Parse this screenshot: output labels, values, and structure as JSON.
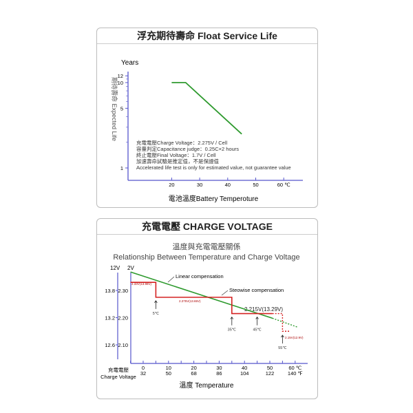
{
  "chart_data": [
    {
      "type": "line",
      "panel_title": "浮充期待壽命 Float Service Life",
      "ylabel_top": "Years",
      "ylabel": "期待壽命 Expected Life",
      "xlabel": "電池溫度Battery Temperoture",
      "yscale": "log",
      "ylim": [
        0.9,
        13
      ],
      "xlim": [
        0,
        65
      ],
      "yticks": [
        "12",
        "10",
        "5",
        "1"
      ],
      "ytick_values": [
        12,
        10,
        5,
        1
      ],
      "xticks": [
        "20",
        "30",
        "40",
        "50",
        "60 ℃"
      ],
      "xtick_values": [
        20,
        30,
        40,
        50,
        60
      ],
      "series": [
        {
          "name": "Expected Life",
          "color": "#2e9a2e",
          "x": [
            20,
            25,
            45
          ],
          "y": [
            10,
            10,
            2.5
          ]
        }
      ],
      "notes": [
        "充電電壓Charge Voltage：2.275V / Cell",
        "容量判定Capacitance judge：0.25C×2 hours",
        "終止電壓Final Voltage：1.7V / Cell",
        "加速壽命試驗是推定值，不是保證值",
        "Accelerated life test is only for estimated value, not guarantee value"
      ]
    },
    {
      "type": "line",
      "panel_title": "充電電壓 CHARGE VOLTAGE",
      "title": "溫度與充電電壓關係",
      "subtitle": "Relationship Between Temperature and Charge Voltage",
      "xlabel": "溫度   Temperature",
      "ylabel": [
        "充電電壓",
        "Charge Voltage"
      ],
      "y_units": [
        "12V",
        "2V"
      ],
      "ylim": [
        2.05,
        2.4
      ],
      "xlim": [
        -5,
        62
      ],
      "yticks_2v": [
        "2.30",
        "2.20",
        "2.10"
      ],
      "yticks_12v": [
        "13.8",
        "13.2",
        "12.6"
      ],
      "ytick_values": [
        2.3,
        2.2,
        2.1
      ],
      "xticks_c": [
        "0",
        "10",
        "20",
        "30",
        "40",
        "50",
        "60 ℃"
      ],
      "xticks_f": [
        "32",
        "50",
        "68",
        "86",
        "104",
        "122",
        "140 ℉"
      ],
      "xtick_values": [
        0,
        10,
        20,
        30,
        40,
        50,
        60
      ],
      "series": [
        {
          "name": "Linear compensation",
          "color": "#2e9a2e",
          "x": [
            -5,
            51
          ],
          "y": [
            2.368,
            2.198
          ],
          "dotted_x": [
            51,
            61
          ],
          "dotted_y": [
            2.198,
            2.165
          ]
        },
        {
          "name": "Steowise compensation",
          "color": "#d42020",
          "x": [
            -5,
            5,
            5,
            35,
            35,
            51
          ],
          "y": [
            2.33,
            2.33,
            2.275,
            2.275,
            2.215,
            2.215
          ],
          "dotted_x": [
            51,
            55,
            55,
            58
          ],
          "dotted_y": [
            2.215,
            2.215,
            2.15,
            2.15
          ]
        }
      ],
      "annotations": [
        "2.33V(13.98V)",
        "2.275V(13.65V)",
        "2.215V(13.29V)",
        "2.15V(12.9V)"
      ],
      "markers": [
        {
          "label": "5℃",
          "x": 5
        },
        {
          "label": "35℃",
          "x": 35
        },
        {
          "label": "45℃",
          "x": 45
        },
        {
          "label": "55℃",
          "x": 55
        }
      ]
    }
  ]
}
